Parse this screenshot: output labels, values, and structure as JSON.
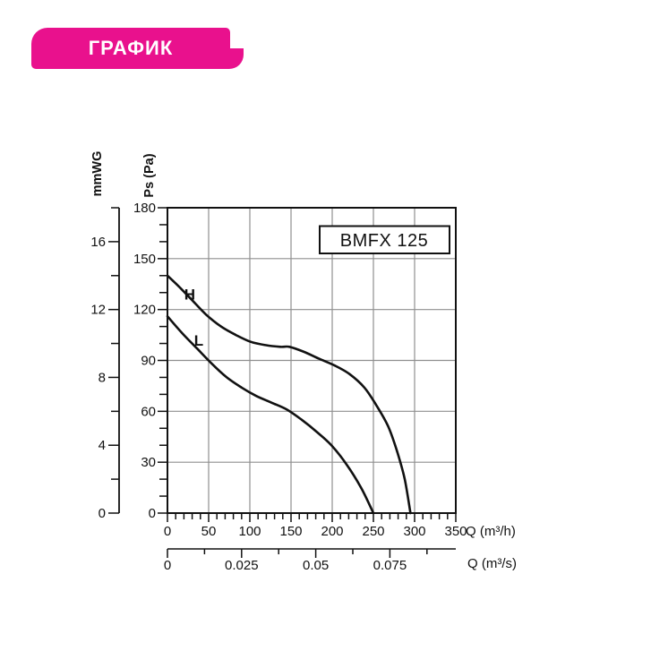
{
  "banner": {
    "label": "ГРАФИК",
    "bg_color": "#E9118D",
    "text_color": "#FFFFFF"
  },
  "chart_data": {
    "type": "line",
    "model_box_label": "BMFX 125",
    "x_axis_primary": {
      "label": "Q (m³/h)",
      "min": 0,
      "max": 350,
      "major_step": 50,
      "minor_step": 10,
      "tick_labels": [
        "0",
        "50",
        "100",
        "150",
        "200",
        "250",
        "300",
        "350"
      ]
    },
    "x_axis_secondary": {
      "label": "Q (m³/s)",
      "tick_labels": [
        "0",
        "0.025",
        "0.05",
        "0.075"
      ],
      "tick_values": [
        0,
        0.025,
        0.05,
        0.075
      ],
      "minor_tick_values": [
        0.0125,
        0.0375,
        0.0625,
        0.0875
      ],
      "m3h_per_unit": 3600
    },
    "y_axis_primary": {
      "label": "Ps (Pa)",
      "min": 0,
      "max": 180,
      "major_step": 30,
      "minor_step": 10,
      "tick_labels": [
        "0",
        "30",
        "60",
        "90",
        "120",
        "150",
        "180"
      ]
    },
    "y_axis_secondary": {
      "label": "mmWG",
      "min": 0,
      "max": 18,
      "major_step": 4,
      "minor_step": 2,
      "tick_labels": [
        "0",
        "4",
        "8",
        "12",
        "16"
      ],
      "pa_per_unit": 10
    },
    "grid": {
      "show": true,
      "color": "#8f8f8f",
      "x_step": 50,
      "y_step": 30
    },
    "series": [
      {
        "name": "H",
        "label_anchor": {
          "q": 27,
          "pa": 129
        },
        "points": [
          [
            0,
            140
          ],
          [
            15,
            133
          ],
          [
            29,
            126
          ],
          [
            47,
            117
          ],
          [
            65,
            110
          ],
          [
            83,
            105
          ],
          [
            101,
            101
          ],
          [
            119,
            99
          ],
          [
            137,
            98
          ],
          [
            148,
            98
          ],
          [
            166,
            95
          ],
          [
            184,
            91
          ],
          [
            203,
            87
          ],
          [
            221,
            82
          ],
          [
            239,
            74
          ],
          [
            253,
            64
          ],
          [
            268,
            51
          ],
          [
            279,
            36
          ],
          [
            288,
            20
          ],
          [
            295,
            0
          ]
        ]
      },
      {
        "name": "L",
        "label_anchor": {
          "q": 38,
          "pa": 102
        },
        "points": [
          [
            0,
            116
          ],
          [
            18,
            106
          ],
          [
            36,
            97
          ],
          [
            54,
            88
          ],
          [
            72,
            80
          ],
          [
            90,
            74
          ],
          [
            108,
            69
          ],
          [
            127,
            65
          ],
          [
            145,
            61
          ],
          [
            163,
            55
          ],
          [
            181,
            48
          ],
          [
            199,
            40
          ],
          [
            217,
            29
          ],
          [
            235,
            15
          ],
          [
            250,
            0
          ]
        ]
      }
    ],
    "colors": {
      "curve": "#111111",
      "axis": "#111111",
      "grid": "#8f8f8f",
      "box_bg": "#ffffff"
    }
  }
}
